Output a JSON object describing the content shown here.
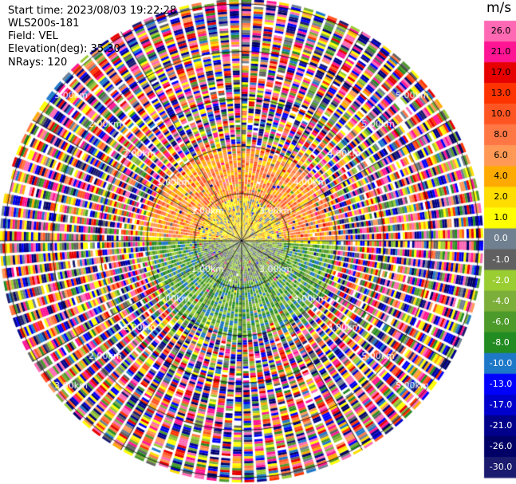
{
  "header": {
    "start_time": "Start time: 2023/08/03 19:22:28",
    "instrument": "WLS200s-181",
    "field": "Field: VEL",
    "elevation": "Elevation(deg): 35.30",
    "nrays": "NRays: 120"
  },
  "chart_data": {
    "type": "heatmap",
    "projection": "polar-ppi",
    "nrays": 120,
    "elevation_deg": 35.3,
    "field": "VEL",
    "units": "m/s",
    "range_rings_km": [
      1.0,
      2.0,
      3.0,
      4.0,
      5.0
    ],
    "max_range_km": 5.1,
    "range_labels": [
      "1.00km",
      "1.00km",
      "2.00km",
      "2.00km",
      "3.00km",
      "3.00km",
      "4.00km",
      "4.00km",
      "5.00km",
      "5.00km",
      "1.00km",
      "1.00km",
      "2.00km",
      "2.00km",
      "3.00km",
      "3.00km",
      "4.00km",
      "4.00km",
      "5.00km",
      "5.00km"
    ],
    "colorbar": {
      "unit": "m/s",
      "ticks": [
        "26.0",
        "21.0",
        "17.0",
        "13.0",
        "10.0",
        "8.0",
        "6.0",
        "4.0",
        "2.0",
        "1.0",
        "0.0",
        "-1.0",
        "-2.0",
        "-4.0",
        "-6.0",
        "-8.0",
        "-10.0",
        "-13.0",
        "-17.0",
        "-21.0",
        "-26.0",
        "-30.0"
      ],
      "colors": [
        "#ff69b4",
        "#ff1493",
        "#e60000",
        "#ff3300",
        "#ff5522",
        "#ff7744",
        "#ff9955",
        "#ffaa00",
        "#ffdd00",
        "#ffff00",
        "#708090",
        "#606060",
        "#9acd32",
        "#7cae3a",
        "#4c9a2a",
        "#228b22",
        "#1e78c8",
        "#0000ff",
        "#0000cd",
        "#00008b",
        "#000066",
        "#1a1a6e"
      ]
    },
    "structure": "Near-range (<2 km) coherent velocity: positive values (orange/yellow, +2 to +10 m/s) to the north, negative values (green/blue, -2 to -10 m/s) to the south; beyond ~2 km noisy random velocities across full colour range."
  }
}
